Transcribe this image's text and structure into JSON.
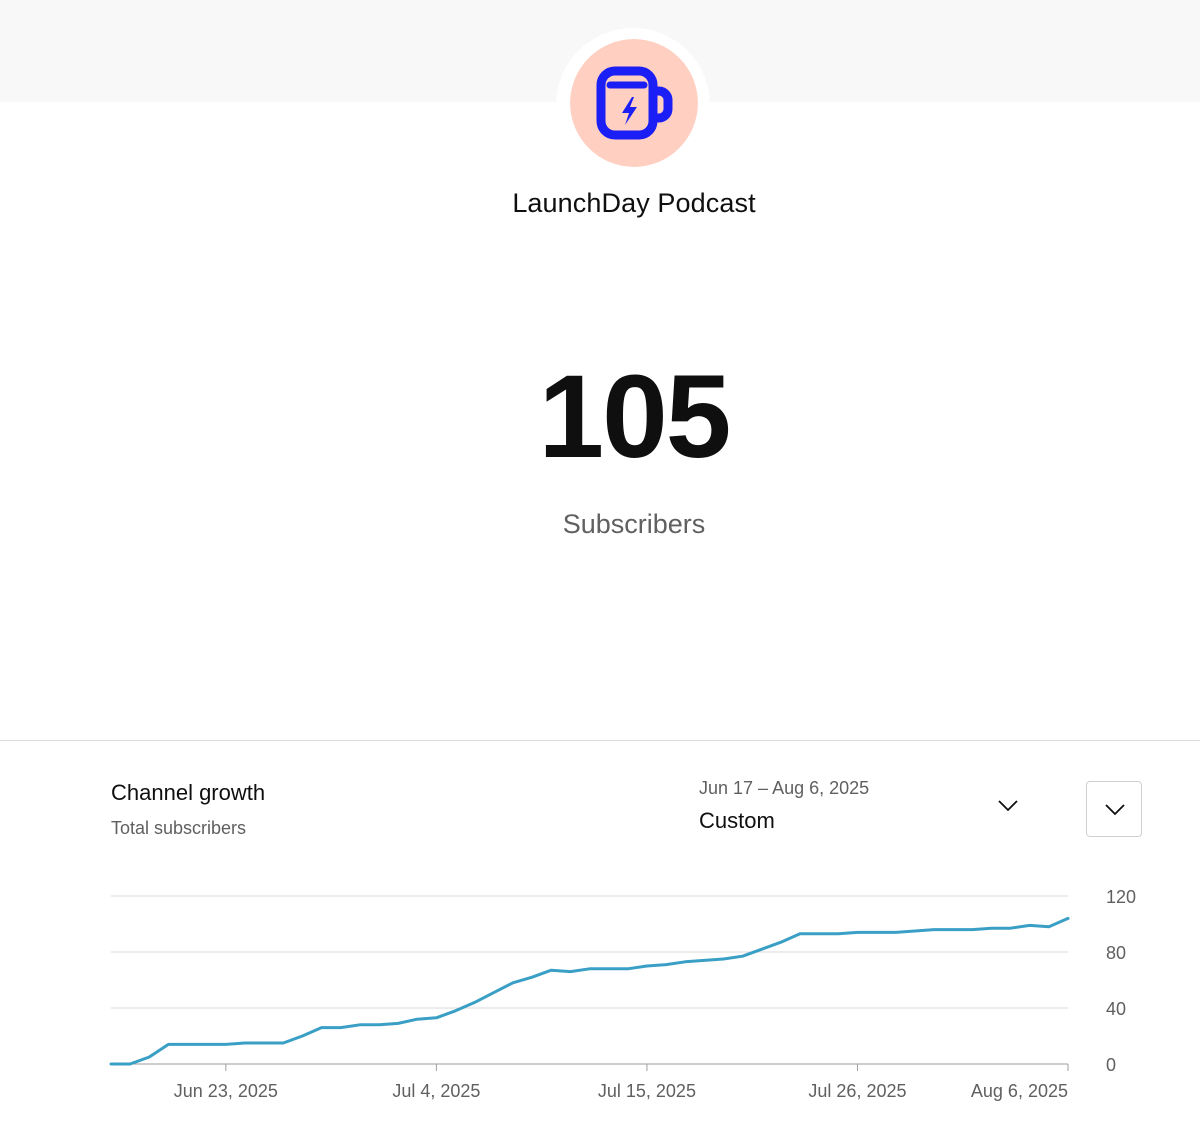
{
  "channel": {
    "name": "LaunchDay Podcast",
    "avatar_icon": "coffee-mug-lightning-icon",
    "avatar_bg": "#ffd0c2",
    "avatar_fg": "#1b1ef5"
  },
  "summary": {
    "count": "105",
    "label": "Subscribers"
  },
  "card": {
    "title": "Channel growth",
    "subtitle": "Total subscribers",
    "range_dates": "Jun 17 – Aug 6, 2025",
    "range_label": "Custom",
    "range_icon": "chevron-down-icon",
    "expand_icon": "chevron-down-icon"
  },
  "chart_data": {
    "type": "line",
    "title": "",
    "xlabel": "",
    "ylabel": "",
    "line_color": "#3a9fc5",
    "grid": true,
    "y_axis_position": "right",
    "ylim": [
      0,
      120
    ],
    "y_ticks": [
      "0",
      "40",
      "80",
      "120"
    ],
    "x_range": [
      "2025-06-17",
      "2025-08-06"
    ],
    "x_ticks": [
      {
        "date": "2025-06-23",
        "label": "Jun 23, 2025"
      },
      {
        "date": "2025-07-04",
        "label": "Jul 4, 2025"
      },
      {
        "date": "2025-07-15",
        "label": "Jul 15, 2025"
      },
      {
        "date": "2025-07-26",
        "label": "Jul 26, 2025"
      },
      {
        "date": "2025-08-06",
        "label": "Aug 6, 2025"
      }
    ],
    "series": [
      {
        "x": [
          "2025-06-17",
          "2025-06-18",
          "2025-06-19",
          "2025-06-20",
          "2025-06-21",
          "2025-06-22",
          "2025-06-23",
          "2025-06-24",
          "2025-06-25",
          "2025-06-26",
          "2025-06-27",
          "2025-06-28",
          "2025-06-29",
          "2025-06-30",
          "2025-07-01",
          "2025-07-02",
          "2025-07-03",
          "2025-07-04",
          "2025-07-05",
          "2025-07-06",
          "2025-07-07",
          "2025-07-08",
          "2025-07-09",
          "2025-07-10",
          "2025-07-11",
          "2025-07-12",
          "2025-07-13",
          "2025-07-14",
          "2025-07-15",
          "2025-07-16",
          "2025-07-17",
          "2025-07-18",
          "2025-07-19",
          "2025-07-20",
          "2025-07-21",
          "2025-07-22",
          "2025-07-23",
          "2025-07-24",
          "2025-07-25",
          "2025-07-26",
          "2025-07-27",
          "2025-07-28",
          "2025-07-29",
          "2025-07-30",
          "2025-07-31",
          "2025-08-01",
          "2025-08-02",
          "2025-08-03",
          "2025-08-04",
          "2025-08-05",
          "2025-08-06"
        ],
        "values": [
          0,
          0,
          5,
          14,
          14,
          14,
          14,
          15,
          15,
          15,
          20,
          26,
          26,
          28,
          28,
          29,
          32,
          33,
          38,
          44,
          51,
          58,
          62,
          67,
          66,
          68,
          68,
          68,
          70,
          71,
          73,
          74,
          75,
          77,
          82,
          87,
          93,
          93,
          93,
          94,
          94,
          94,
          95,
          96,
          96,
          96,
          97,
          97,
          99,
          98,
          104
        ]
      }
    ]
  }
}
